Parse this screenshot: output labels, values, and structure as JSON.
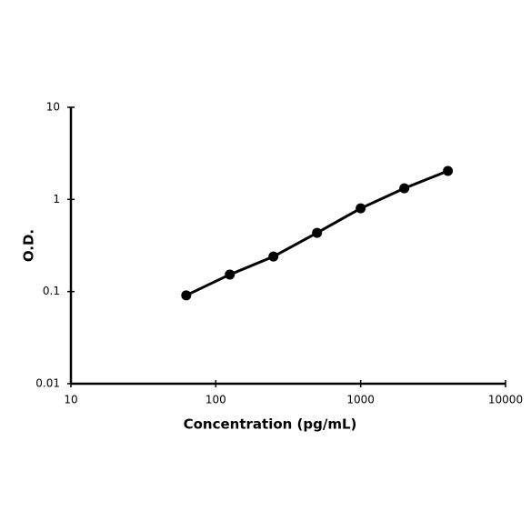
{
  "chart_data": {
    "type": "line",
    "x_label": "Concentration (pg/mL)",
    "y_label": "O.D.",
    "x": [
      62.5,
      125,
      250,
      500,
      1000,
      2000,
      4000
    ],
    "series": [
      {
        "color": "#000000",
        "values": [
          0.091,
          0.153,
          0.24,
          0.434,
          0.8,
          1.32,
          2.04
        ]
      }
    ],
    "xlim": [
      10,
      10000
    ],
    "ylim": [
      0.01,
      10
    ],
    "xticks": [
      10,
      100,
      1000,
      10000
    ],
    "yticks": [
      0.01,
      0.1,
      1,
      10
    ],
    "xscale": "log",
    "yscale": "log",
    "grid": false
  }
}
